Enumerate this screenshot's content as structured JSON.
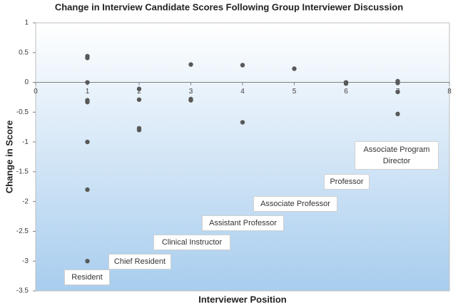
{
  "chart_data": {
    "type": "scatter",
    "title": "Change in Interview Candidate Scores Following Group Interviewer Discussion",
    "xlabel": "Interviewer Position",
    "ylabel": "Change in Score",
    "x": [
      1,
      1,
      1,
      1,
      1,
      1,
      1,
      1,
      2,
      2,
      2,
      2,
      3,
      3,
      3,
      4,
      4,
      5,
      6,
      6,
      7,
      7,
      7,
      7
    ],
    "values": [
      0.44,
      0.41,
      0,
      -0.3,
      -0.33,
      -1,
      -1.8,
      -3,
      -0.11,
      -0.29,
      -0.77,
      -0.8,
      0.3,
      -0.28,
      -0.3,
      0.29,
      -0.67,
      0.23,
      0,
      -0.02,
      0.02,
      -0.01,
      -0.16,
      -0.53
    ],
    "color": "#595959",
    "xlim": [
      0,
      8
    ],
    "xticks": [
      0,
      1,
      2,
      3,
      4,
      5,
      6,
      7,
      8
    ],
    "ylim": [
      -3.5,
      1
    ],
    "yticks": [
      1,
      0.5,
      0,
      -0.5,
      -1,
      -1.5,
      -2,
      -2.5,
      -3,
      -3.5
    ],
    "annotations": [
      "Resident",
      "Chief Resident",
      "Clinical Instructor",
      "Assistant Professor",
      "Associate Professor",
      "Professor",
      "Associate Program Director"
    ]
  }
}
